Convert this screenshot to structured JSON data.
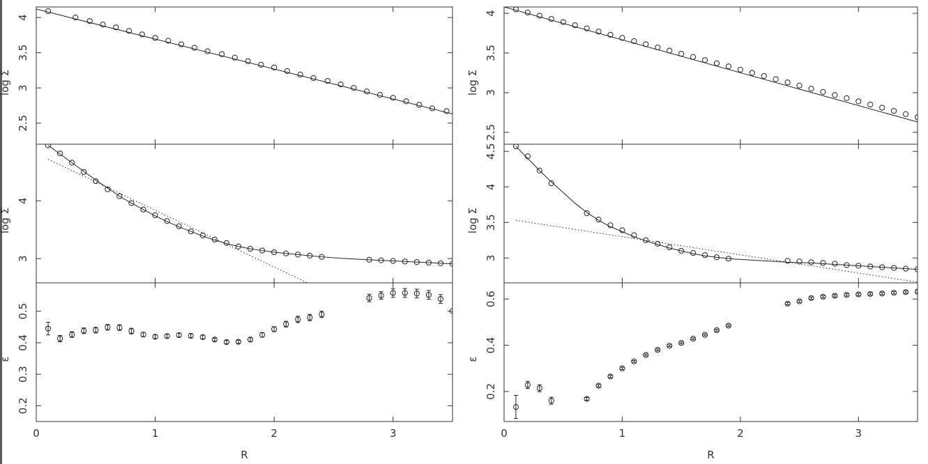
{
  "chart_data": [
    {
      "type": "scatter",
      "panel": "left",
      "xlabel": "R",
      "xlim": [
        0,
        3.5
      ],
      "x_ticks": [
        0,
        1,
        2,
        3
      ],
      "subplots": [
        {
          "ylabel": "log Σ",
          "ylim": [
            2.2,
            4.15
          ],
          "y_ticks": [
            2.5,
            3,
            3.5,
            4
          ],
          "points": {
            "x": [
              0.1,
              0.33,
              0.45,
              0.56,
              0.67,
              0.78,
              0.89,
              1.0,
              1.11,
              1.22,
              1.33,
              1.44,
              1.56,
              1.67,
              1.78,
              1.89,
              2.0,
              2.11,
              2.22,
              2.33,
              2.45,
              2.56,
              2.67,
              2.78,
              2.89,
              3.0,
              3.11,
              3.22,
              3.33,
              3.45
            ],
            "y": [
              4.09,
              4.0,
              3.95,
              3.9,
              3.86,
              3.81,
              3.76,
              3.71,
              3.67,
              3.62,
              3.57,
              3.52,
              3.48,
              3.43,
              3.38,
              3.33,
              3.29,
              3.24,
              3.19,
              3.14,
              3.1,
              3.05,
              3.0,
              2.95,
              2.9,
              2.86,
              2.81,
              2.76,
              2.71,
              2.67
            ]
          },
          "fit_solid": {
            "x": [
              0.0,
              3.5
            ],
            "y": [
              4.12,
              2.63
            ]
          }
        },
        {
          "ylabel": "log Σ",
          "ylim": [
            2.58,
            4.98
          ],
          "y_ticks": [
            3,
            4
          ],
          "points": {
            "x": [
              0.1,
              0.2,
              0.3,
              0.4,
              0.5,
              0.6,
              0.7,
              0.8,
              0.9,
              1.0,
              1.1,
              1.2,
              1.3,
              1.4,
              1.5,
              1.6,
              1.7,
              1.8,
              1.9,
              2.0,
              2.1,
              2.2,
              2.3,
              2.4,
              2.8,
              2.9,
              3.0,
              3.1,
              3.2,
              3.3,
              3.4,
              3.5
            ],
            "y": [
              4.96,
              4.82,
              4.66,
              4.5,
              4.34,
              4.2,
              4.08,
              3.96,
              3.85,
              3.75,
              3.65,
              3.56,
              3.47,
              3.4,
              3.33,
              3.27,
              3.21,
              3.17,
              3.14,
              3.11,
              3.09,
              3.07,
              3.05,
              3.03,
              2.98,
              2.97,
              2.96,
              2.95,
              2.94,
              2.93,
              2.92,
              2.91
            ]
          },
          "fit_solid": {
            "x": [
              0.1,
              0.2,
              0.3,
              0.4,
              0.5,
              0.6,
              0.7,
              0.8,
              0.9,
              1.0,
              1.1,
              1.2,
              1.3,
              1.4,
              1.5,
              1.6,
              1.7,
              1.8,
              1.9,
              2.0,
              2.1,
              2.2,
              2.3,
              2.4,
              2.6,
              2.8,
              3.0,
              3.2,
              3.4,
              3.5
            ],
            "y": [
              4.96,
              4.81,
              4.66,
              4.51,
              4.36,
              4.22,
              4.08,
              3.96,
              3.85,
              3.74,
              3.64,
              3.55,
              3.47,
              3.39,
              3.32,
              3.26,
              3.21,
              3.17,
              3.14,
              3.11,
              3.09,
              3.07,
              3.05,
              3.03,
              3.0,
              2.98,
              2.96,
              2.94,
              2.92,
              2.91
            ]
          },
          "fit_dotted": {
            "x": [
              0.1,
              2.28
            ],
            "y": [
              4.72,
              2.58
            ]
          }
        },
        {
          "ylabel": "ε",
          "ylim": [
            0.15,
            0.59
          ],
          "y_ticks": [
            0.2,
            0.3,
            0.4,
            0.5
          ],
          "points": {
            "x": [
              0.1,
              0.2,
              0.3,
              0.4,
              0.5,
              0.6,
              0.7,
              0.8,
              0.9,
              1.0,
              1.1,
              1.2,
              1.3,
              1.4,
              1.5,
              1.6,
              1.7,
              1.8,
              1.9,
              2.0,
              2.1,
              2.2,
              2.3,
              2.4,
              2.8,
              2.9,
              3.0,
              3.1,
              3.2,
              3.3,
              3.4,
              3.5
            ],
            "y": [
              0.445,
              0.413,
              0.426,
              0.438,
              0.44,
              0.449,
              0.448,
              0.437,
              0.426,
              0.419,
              0.421,
              0.424,
              0.422,
              0.418,
              0.41,
              0.402,
              0.403,
              0.41,
              0.425,
              0.443,
              0.459,
              0.474,
              0.48,
              0.49,
              0.542,
              0.55,
              0.558,
              0.558,
              0.556,
              0.552,
              0.539,
              0.501
            ],
            "err": [
              0.02,
              0.01,
              0.009,
              0.009,
              0.009,
              0.009,
              0.009,
              0.009,
              0.007,
              0.006,
              0.006,
              0.006,
              0.006,
              0.006,
              0.005,
              0.005,
              0.005,
              0.006,
              0.007,
              0.008,
              0.009,
              0.01,
              0.01,
              0.01,
              0.012,
              0.012,
              0.014,
              0.014,
              0.014,
              0.014,
              0.014,
              0.0
            ]
          }
        }
      ]
    },
    {
      "type": "scatter",
      "panel": "right",
      "xlabel": "R",
      "xlim": [
        0,
        3.5
      ],
      "x_ticks": [
        0,
        1,
        2,
        3
      ],
      "subplots": [
        {
          "ylabel": "log Σ",
          "ylim": [
            2.35,
            4.08
          ],
          "y_ticks": [
            2.5,
            3,
            3.5,
            4
          ],
          "points": {
            "x": [
              0.1,
              0.2,
              0.3,
              0.4,
              0.5,
              0.6,
              0.7,
              0.8,
              0.9,
              1.0,
              1.1,
              1.2,
              1.3,
              1.4,
              1.5,
              1.6,
              1.7,
              1.8,
              1.9,
              2.0,
              2.1,
              2.2,
              2.3,
              2.4,
              2.5,
              2.6,
              2.7,
              2.8,
              2.9,
              3.0,
              3.1,
              3.2,
              3.3,
              3.4,
              3.5
            ],
            "y": [
              4.05,
              4.01,
              3.97,
              3.93,
              3.89,
              3.85,
              3.81,
              3.77,
              3.73,
              3.69,
              3.65,
              3.61,
              3.57,
              3.53,
              3.49,
              3.45,
              3.41,
              3.37,
              3.33,
              3.29,
              3.25,
              3.21,
              3.17,
              3.13,
              3.09,
              3.05,
              3.01,
              2.97,
              2.93,
              2.89,
              2.85,
              2.81,
              2.77,
              2.73,
              2.69
            ]
          },
          "fit_solid": {
            "x": [
              0.0,
              3.5
            ],
            "y": [
              4.08,
              2.63
            ]
          }
        },
        {
          "ylabel": "log Σ",
          "ylim": [
            2.65,
            4.6
          ],
          "y_ticks": [
            3,
            3.5,
            4,
            4.5
          ],
          "points": {
            "x": [
              0.1,
              0.2,
              0.3,
              0.4,
              0.7,
              0.8,
              0.9,
              1.0,
              1.1,
              1.2,
              1.3,
              1.4,
              1.5,
              1.6,
              1.7,
              1.8,
              1.9,
              2.4,
              2.5,
              2.6,
              2.7,
              2.8,
              2.9,
              3.0,
              3.1,
              3.2,
              3.3,
              3.4,
              3.5
            ],
            "y": [
              4.57,
              4.43,
              4.23,
              4.05,
              3.63,
              3.54,
              3.46,
              3.39,
              3.32,
              3.25,
              3.2,
              3.15,
              3.1,
              3.07,
              3.04,
              3.01,
              2.99,
              2.96,
              2.95,
              2.94,
              2.93,
              2.92,
              2.9,
              2.89,
              2.88,
              2.87,
              2.86,
              2.85,
              2.84
            ]
          },
          "fit_solid": {
            "x": [
              0.1,
              0.2,
              0.3,
              0.4,
              0.5,
              0.6,
              0.7,
              0.8,
              0.9,
              1.0,
              1.1,
              1.2,
              1.3,
              1.4,
              1.5,
              1.6,
              1.7,
              1.8,
              1.9,
              2.0,
              2.2,
              2.4,
              2.6,
              2.8,
              3.0,
              3.2,
              3.4,
              3.5
            ],
            "y": [
              4.57,
              4.4,
              4.23,
              4.07,
              3.92,
              3.77,
              3.64,
              3.53,
              3.44,
              3.37,
              3.3,
              3.24,
              3.19,
              3.14,
              3.1,
              3.06,
              3.03,
              3.01,
              2.99,
              2.98,
              2.96,
              2.94,
              2.93,
              2.91,
              2.89,
              2.87,
              2.85,
              2.84
            ]
          },
          "fit_dotted": {
            "x": [
              0.1,
              3.5
            ],
            "y": [
              3.53,
              2.66
            ]
          }
        },
        {
          "ylabel": "ε",
          "ylim": [
            0.07,
            0.67
          ],
          "y_ticks": [
            0.2,
            0.4,
            0.6
          ],
          "points": {
            "x": [
              0.1,
              0.2,
              0.3,
              0.4,
              0.7,
              0.8,
              0.9,
              1.0,
              1.1,
              1.2,
              1.3,
              1.4,
              1.5,
              1.6,
              1.7,
              1.8,
              1.9,
              2.4,
              2.5,
              2.6,
              2.7,
              2.8,
              2.9,
              3.0,
              3.1,
              3.2,
              3.3,
              3.4,
              3.5
            ],
            "y": [
              0.133,
              0.228,
              0.214,
              0.16,
              0.168,
              0.225,
              0.265,
              0.3,
              0.33,
              0.358,
              0.38,
              0.398,
              0.41,
              0.428,
              0.445,
              0.465,
              0.485,
              0.58,
              0.59,
              0.604,
              0.61,
              0.614,
              0.618,
              0.62,
              0.622,
              0.624,
              0.627,
              0.63,
              0.632
            ],
            "err": [
              0.05,
              0.015,
              0.015,
              0.015,
              0.006,
              0.005,
              0.005,
              0.005,
              0.004,
              0.004,
              0.004,
              0.004,
              0.004,
              0.004,
              0.004,
              0.004,
              0.004,
              0.005,
              0.005,
              0.005,
              0.005,
              0.005,
              0.005,
              0.005,
              0.005,
              0.005,
              0.005,
              0.005,
              0.005
            ]
          }
        }
      ]
    }
  ]
}
